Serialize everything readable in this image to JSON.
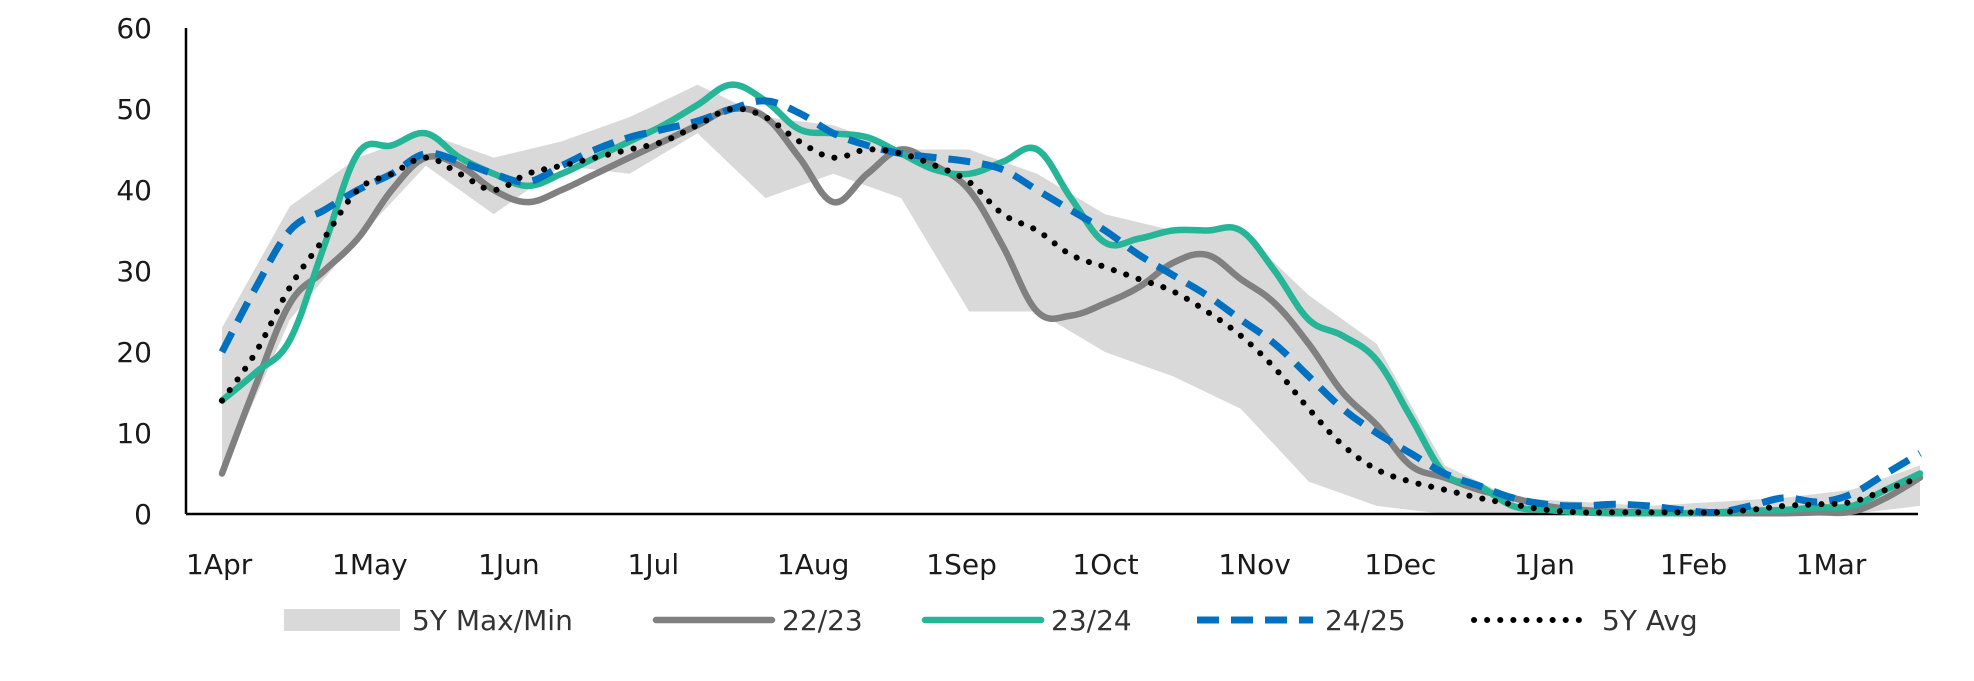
{
  "chart_data": {
    "type": "line",
    "title": "",
    "xlabel": "",
    "ylabel": "",
    "ylim": [
      0,
      60
    ],
    "yticks": [
      "0",
      "10",
      "20",
      "30",
      "40",
      "50",
      "60"
    ],
    "xlim": [
      0,
      51
    ],
    "xticks": [
      {
        "label": "1Apr",
        "x": 0
      },
      {
        "label": "1May",
        "x": 4.3
      },
      {
        "label": "1Jun",
        "x": 8.6
      },
      {
        "label": "1Jul",
        "x": 13
      },
      {
        "label": "1Aug",
        "x": 17.4
      },
      {
        "label": "1Sep",
        "x": 21.8
      },
      {
        "label": "1Oct",
        "x": 26.1
      },
      {
        "label": "1Nov",
        "x": 30.4
      },
      {
        "label": "1Dec",
        "x": 34.7
      },
      {
        "label": "1Jan",
        "x": 39.1
      },
      {
        "label": "1Feb",
        "x": 43.4
      },
      {
        "label": "1Mar",
        "x": 47.4
      }
    ],
    "grid": false,
    "legend": "bottom",
    "band": {
      "name": "5Y Max/Min",
      "color": "#d9d9d9",
      "x": [
        0,
        2,
        4,
        6,
        8,
        10,
        12,
        14,
        16,
        18,
        20,
        22,
        24,
        26,
        28,
        30,
        32,
        34,
        36,
        38,
        40,
        42,
        44,
        46,
        48,
        50
      ],
      "max": [
        23,
        38,
        44,
        47,
        44,
        46,
        49,
        53,
        49,
        48,
        45,
        45,
        42,
        37,
        35,
        35,
        27,
        21,
        6,
        2,
        1.5,
        1,
        1.5,
        2,
        3,
        6
      ],
      "min": [
        5,
        24,
        34,
        43,
        37,
        43,
        42,
        47,
        39,
        42,
        39,
        25,
        25,
        20,
        17,
        13,
        4,
        1,
        0,
        0,
        0,
        0,
        0,
        0,
        0,
        1
      ]
    },
    "series": [
      {
        "name": "22/23",
        "color": "#808080",
        "dash": "solid",
        "x": [
          0,
          1,
          2,
          3,
          4,
          5,
          6,
          7,
          8,
          9,
          10,
          11,
          12,
          13,
          14,
          15,
          16,
          17,
          18,
          19,
          20,
          21,
          22,
          23,
          24,
          25,
          26,
          27,
          28,
          29,
          30,
          31,
          32,
          33,
          34,
          35,
          36,
          37,
          38,
          39,
          40,
          41,
          42,
          43,
          44,
          45,
          46,
          47,
          48,
          49,
          50
        ],
        "values": [
          5,
          16,
          26,
          30,
          34,
          40,
          44,
          43,
          40,
          38.5,
          40,
          42,
          44,
          46,
          48,
          50,
          49,
          44,
          38.5,
          42,
          45,
          43,
          40,
          33,
          25,
          24.5,
          26,
          28,
          31,
          32,
          29,
          26,
          21,
          15,
          11,
          6,
          4.5,
          3,
          2,
          1,
          0.5,
          0.3,
          0.2,
          0.1,
          0.1,
          0.1,
          0.1,
          0.2,
          0.3,
          2,
          4.5
        ]
      },
      {
        "name": "23/24",
        "color": "#26b597",
        "dash": "solid",
        "x": [
          0,
          1,
          2,
          3,
          4,
          5,
          6,
          7,
          8,
          9,
          10,
          11,
          12,
          13,
          14,
          15,
          16,
          17,
          18,
          19,
          20,
          21,
          22,
          23,
          24,
          25,
          26,
          27,
          28,
          29,
          30,
          31,
          32,
          33,
          34,
          35,
          36,
          37,
          38,
          39,
          40,
          41,
          42,
          43,
          44,
          45,
          46,
          47,
          48,
          49,
          50
        ],
        "values": [
          14,
          17.5,
          21.5,
          33,
          44.5,
          45.5,
          47,
          44,
          42,
          40.5,
          42,
          44,
          46,
          48,
          50.5,
          53,
          51,
          47.5,
          47,
          46.5,
          44.5,
          42.5,
          42,
          43.5,
          45,
          39,
          33.5,
          34,
          35,
          35,
          35,
          30,
          24,
          22,
          19,
          12,
          5,
          3.5,
          1,
          0.5,
          0.2,
          0.1,
          0.1,
          0.1,
          0.2,
          0.4,
          0.5,
          0.8,
          1,
          3,
          5
        ]
      },
      {
        "name": "24/25",
        "color": "#0070c0",
        "dash": "dashed",
        "x": [
          0,
          1,
          2,
          3,
          4,
          5,
          6,
          7,
          8,
          9,
          10,
          11,
          12,
          13,
          14,
          15,
          16,
          17,
          18,
          19,
          20,
          21,
          22,
          23,
          24,
          25,
          26,
          27,
          28,
          29,
          30,
          31,
          32,
          33,
          34,
          35,
          36,
          37,
          38,
          39,
          40,
          41,
          42,
          43,
          44,
          45,
          46,
          47,
          48,
          49,
          50
        ],
        "values": [
          20,
          28,
          35,
          37.5,
          40,
          42,
          44.5,
          43.5,
          42,
          41,
          43,
          45,
          46.5,
          47.5,
          48.5,
          50,
          51,
          49.5,
          47,
          45.5,
          44.5,
          44,
          43.5,
          42.5,
          40,
          37.5,
          35,
          32,
          29.5,
          27,
          24,
          21,
          17,
          13,
          10,
          7.5,
          5,
          3.5,
          2,
          1.2,
          1,
          1.2,
          1,
          0.5,
          0.2,
          1,
          2,
          1.5,
          2.5,
          5,
          7.5
        ]
      },
      {
        "name": "5Y Avg",
        "color": "#000000",
        "dash": "dotted",
        "x": [
          0,
          1,
          2,
          3,
          4,
          5,
          6,
          7,
          8,
          9,
          10,
          11,
          12,
          13,
          14,
          15,
          16,
          17,
          18,
          19,
          20,
          21,
          22,
          23,
          24,
          25,
          26,
          27,
          28,
          29,
          30,
          31,
          32,
          33,
          34,
          35,
          36,
          37,
          38,
          39,
          40,
          41,
          42,
          43,
          44,
          45,
          46,
          47,
          48,
          49,
          50
        ],
        "values": [
          14,
          20,
          28,
          34,
          40,
          42,
          44,
          42,
          40,
          42,
          43,
          44,
          45,
          46,
          48,
          50,
          49,
          46,
          44,
          45,
          44.5,
          43,
          41,
          37,
          35,
          32,
          30.5,
          29,
          27.5,
          25,
          22,
          18,
          13,
          8.5,
          5.5,
          4,
          3,
          2,
          1.2,
          0.5,
          0.2,
          0.2,
          0.2,
          0.2,
          0.2,
          0.5,
          1,
          1.2,
          1.5,
          3,
          4.5
        ]
      }
    ]
  }
}
